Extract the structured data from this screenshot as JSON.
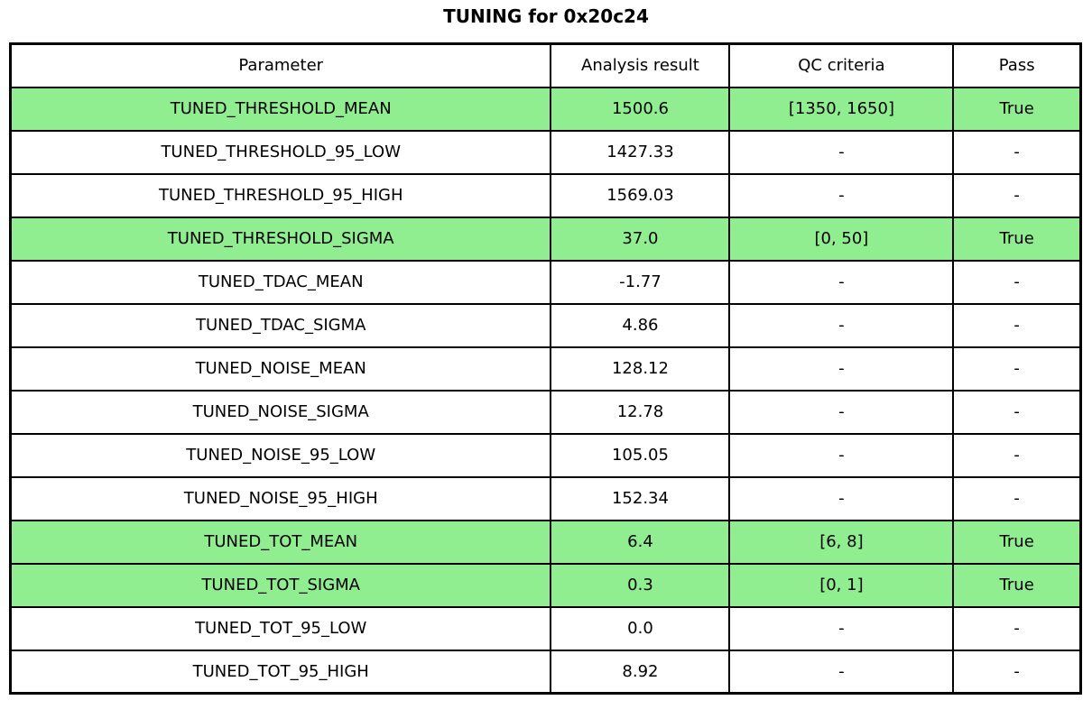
{
  "title": "TUNING for 0x20c24",
  "colors": {
    "highlight": "#90EE90",
    "border": "#000000",
    "background": "#ffffff"
  },
  "chart_data": {
    "type": "table",
    "title": "TUNING for 0x20c24",
    "columns": [
      "Parameter",
      "Analysis result",
      "QC criteria",
      "Pass"
    ],
    "rows": [
      {
        "parameter": "TUNED_THRESHOLD_MEAN",
        "analysis_result": "1500.6",
        "qc_criteria": "[1350, 1650]",
        "pass": "True",
        "highlight": true
      },
      {
        "parameter": "TUNED_THRESHOLD_95_LOW",
        "analysis_result": "1427.33",
        "qc_criteria": "-",
        "pass": "-",
        "highlight": false
      },
      {
        "parameter": "TUNED_THRESHOLD_95_HIGH",
        "analysis_result": "1569.03",
        "qc_criteria": "-",
        "pass": "-",
        "highlight": false
      },
      {
        "parameter": "TUNED_THRESHOLD_SIGMA",
        "analysis_result": "37.0",
        "qc_criteria": "[0, 50]",
        "pass": "True",
        "highlight": true
      },
      {
        "parameter": "TUNED_TDAC_MEAN",
        "analysis_result": "-1.77",
        "qc_criteria": "-",
        "pass": "-",
        "highlight": false
      },
      {
        "parameter": "TUNED_TDAC_SIGMA",
        "analysis_result": "4.86",
        "qc_criteria": "-",
        "pass": "-",
        "highlight": false
      },
      {
        "parameter": "TUNED_NOISE_MEAN",
        "analysis_result": "128.12",
        "qc_criteria": "-",
        "pass": "-",
        "highlight": false
      },
      {
        "parameter": "TUNED_NOISE_SIGMA",
        "analysis_result": "12.78",
        "qc_criteria": "-",
        "pass": "-",
        "highlight": false
      },
      {
        "parameter": "TUNED_NOISE_95_LOW",
        "analysis_result": "105.05",
        "qc_criteria": "-",
        "pass": "-",
        "highlight": false
      },
      {
        "parameter": "TUNED_NOISE_95_HIGH",
        "analysis_result": "152.34",
        "qc_criteria": "-",
        "pass": "-",
        "highlight": false
      },
      {
        "parameter": "TUNED_TOT_MEAN",
        "analysis_result": "6.4",
        "qc_criteria": "[6, 8]",
        "pass": "True",
        "highlight": true
      },
      {
        "parameter": "TUNED_TOT_SIGMA",
        "analysis_result": "0.3",
        "qc_criteria": "[0, 1]",
        "pass": "True",
        "highlight": true
      },
      {
        "parameter": "TUNED_TOT_95_LOW",
        "analysis_result": "0.0",
        "qc_criteria": "-",
        "pass": "-",
        "highlight": false
      },
      {
        "parameter": "TUNED_TOT_95_HIGH",
        "analysis_result": "8.92",
        "qc_criteria": "-",
        "pass": "-",
        "highlight": false
      }
    ]
  }
}
